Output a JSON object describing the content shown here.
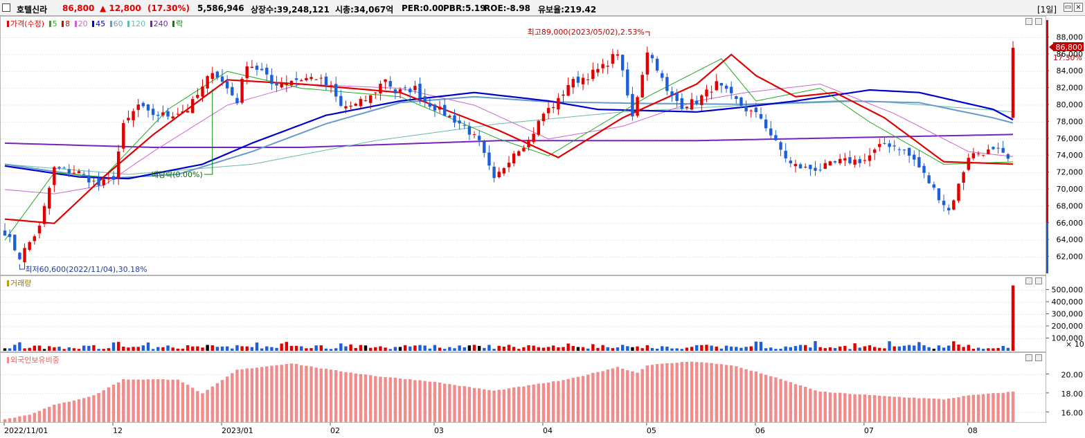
{
  "header": {
    "stock_name": "호텔신라",
    "price": "86,800",
    "change": "▲ 12,800",
    "change_pct": "(17.30%)",
    "volume": "5,586,946",
    "listed_shares": "상장수:39,248,121",
    "market_cap": "시총:34,067억",
    "per": "PER:0.00",
    "pbr": "PBR:5.19",
    "roe": "ROE:-8.98",
    "float_ratio": "유보율:219.42",
    "period": "[1일]"
  },
  "price_panel": {
    "legend": [
      {
        "label": "가격(수정)",
        "color": "#e00000"
      },
      {
        "label": "5",
        "color": "#22aa22"
      },
      {
        "label": "8",
        "color": "#e00000"
      },
      {
        "label": "20",
        "color": "#cc66cc"
      },
      {
        "label": "45",
        "color": "#0000cc"
      },
      {
        "label": "60",
        "color": "#6699cc"
      },
      {
        "label": "120",
        "color": "#66bbaa"
      },
      {
        "label": "240",
        "color": "#7722bb"
      },
      {
        "label": "락",
        "color": "#008800"
      }
    ],
    "annotations": {
      "high": "최고89,000(2023/05/02),2.53%",
      "low": "최저60,600(2022/11/04),30.18%",
      "dividend": "배당락(0.00%)"
    },
    "current_price_label": "86,800",
    "current_pct_label": "17.30%"
  },
  "volume_panel": {
    "title": "거래량",
    "unit_label": "× 10"
  },
  "foreign_panel": {
    "title": "외국인보유비중"
  },
  "colors": {
    "up": "#e00000",
    "down": "#1d5fd6",
    "ma5": "#22aa22",
    "ma8": "#e00000",
    "ma20": "#cc66cc",
    "ma45": "#0000cc",
    "ma60": "#6699cc",
    "ma120": "#66bbaa",
    "ma240": "#7722bb",
    "foreign_bar": "#f08c8c"
  },
  "chart_data": [
    {
      "type": "candlestick",
      "title": "호텔신라",
      "x_tick_labels": [
        "2022/11/01",
        "12",
        "2023/01",
        "02",
        "03",
        "04",
        "05",
        "06",
        "07",
        "08"
      ],
      "y_ticks": [
        62000,
        64000,
        66000,
        68000,
        70000,
        72000,
        74000,
        76000,
        78000,
        80000,
        82000,
        84000,
        86000,
        88000
      ],
      "ylim": [
        60000,
        90000
      ],
      "close_keypoints": [
        [
          "2022/11/01",
          65000
        ],
        [
          "2022/11/04",
          62000
        ],
        [
          "2022/11/10",
          65500
        ],
        [
          "2022/11/15",
          72500
        ],
        [
          "2022/11/22",
          72000
        ],
        [
          "2022/11/28",
          70500
        ],
        [
          "2022/12/01",
          71500
        ],
        [
          "2022/12/05",
          77500
        ],
        [
          "2022/12/08",
          80000
        ],
        [
          "2022/12/12",
          79000
        ],
        [
          "2022/12/16",
          78800
        ],
        [
          "2022/12/22",
          79500
        ],
        [
          "2022/12/27",
          82000
        ],
        [
          "2022/12/29",
          84200
        ],
        [
          "2023/01/05",
          80500
        ],
        [
          "2023/01/09",
          85000
        ],
        [
          "2023/01/12",
          84000
        ],
        [
          "2023/01/16",
          82500
        ],
        [
          "2023/01/20",
          83000
        ],
        [
          "2023/01/27",
          83300
        ],
        [
          "2023/02/01",
          82000
        ],
        [
          "2023/02/03",
          79800
        ],
        [
          "2023/02/08",
          80000
        ],
        [
          "2023/02/13",
          81000
        ],
        [
          "2023/02/16",
          83200
        ],
        [
          "2023/02/20",
          81500
        ],
        [
          "2023/02/24",
          82000
        ],
        [
          "2023/02/28",
          80500
        ],
        [
          "2023/03/06",
          79000
        ],
        [
          "2023/03/10",
          77500
        ],
        [
          "2023/03/15",
          75500
        ],
        [
          "2023/03/20",
          71000
        ],
        [
          "2023/03/24",
          74500
        ],
        [
          "2023/03/29",
          75800
        ],
        [
          "2023/04/03",
          79000
        ],
        [
          "2023/04/06",
          80500
        ],
        [
          "2023/04/10",
          82500
        ],
        [
          "2023/04/14",
          83500
        ],
        [
          "2023/04/19",
          84500
        ],
        [
          "2023/04/24",
          86300
        ],
        [
          "2023/04/27",
          78500
        ],
        [
          "2023/05/02",
          86500
        ],
        [
          "2023/05/04",
          84500
        ],
        [
          "2023/05/08",
          81500
        ],
        [
          "2023/05/11",
          80000
        ],
        [
          "2023/05/16",
          80500
        ],
        [
          "2023/05/22",
          82500
        ],
        [
          "2023/05/25",
          81000
        ],
        [
          "2023/05/30",
          79500
        ],
        [
          "2023/06/02",
          78500
        ],
        [
          "2023/06/07",
          75500
        ],
        [
          "2023/06/12",
          73000
        ],
        [
          "2023/06/15",
          72500
        ],
        [
          "2023/06/20",
          72500
        ],
        [
          "2023/06/26",
          73300
        ],
        [
          "2023/07/03",
          73500
        ],
        [
          "2023/07/07",
          75500
        ],
        [
          "2023/07/12",
          75000
        ],
        [
          "2023/07/17",
          73500
        ],
        [
          "2023/07/21",
          70000
        ],
        [
          "2023/07/26",
          67500
        ],
        [
          "2023/07/28",
          70500
        ],
        [
          "2023/08/01",
          74000
        ],
        [
          "2023/08/04",
          74500
        ],
        [
          "2023/08/09",
          74500
        ],
        [
          "2023/08/11",
          73500
        ],
        [
          "2023/08/14",
          86800
        ]
      ],
      "moving_averages": {
        "5": [
          [
            0,
            64000
          ],
          [
            10,
            72000
          ],
          [
            20,
            71500
          ],
          [
            33,
            79500
          ],
          [
            45,
            84000
          ],
          [
            60,
            82000
          ],
          [
            80,
            81000
          ],
          [
            100,
            76000
          ],
          [
            110,
            74000
          ],
          [
            130,
            81000
          ],
          [
            145,
            85500
          ],
          [
            152,
            80500
          ],
          [
            165,
            82000
          ],
          [
            175,
            78000
          ],
          [
            190,
            73000
          ],
          [
            205,
            73300
          ],
          [
            215,
            75000
          ],
          [
            225,
            70000
          ],
          [
            231,
            73000
          ],
          [
            240,
            75800
          ]
        ],
        "8": [
          [
            0,
            66500
          ],
          [
            10,
            66000
          ],
          [
            20,
            71500
          ],
          [
            30,
            76500
          ],
          [
            45,
            83000
          ],
          [
            60,
            82500
          ],
          [
            80,
            81500
          ],
          [
            100,
            77000
          ],
          [
            112,
            73800
          ],
          [
            125,
            78500
          ],
          [
            140,
            82500
          ],
          [
            147,
            86000
          ],
          [
            152,
            83500
          ],
          [
            160,
            81000
          ],
          [
            168,
            81500
          ],
          [
            178,
            78500
          ],
          [
            190,
            73300
          ],
          [
            205,
            73000
          ],
          [
            215,
            75000
          ],
          [
            222,
            72500
          ],
          [
            228,
            69800
          ],
          [
            235,
            72500
          ],
          [
            242,
            75800
          ]
        ],
        "20": [
          [
            0,
            70000
          ],
          [
            10,
            69500
          ],
          [
            20,
            70500
          ],
          [
            30,
            74500
          ],
          [
            45,
            80000
          ],
          [
            60,
            82500
          ],
          [
            80,
            82000
          ],
          [
            95,
            80000
          ],
          [
            110,
            76000
          ],
          [
            125,
            77500
          ],
          [
            140,
            80500
          ],
          [
            150,
            81500
          ],
          [
            165,
            82500
          ],
          [
            180,
            79000
          ],
          [
            195,
            74500
          ],
          [
            210,
            73500
          ],
          [
            222,
            74000
          ],
          [
            232,
            73000
          ],
          [
            242,
            73200
          ]
        ],
        "45": [
          [
            0,
            72800
          ],
          [
            15,
            71500
          ],
          [
            25,
            71300
          ],
          [
            40,
            73000
          ],
          [
            50,
            75500
          ],
          [
            65,
            78800
          ],
          [
            80,
            80500
          ],
          [
            95,
            81500
          ],
          [
            110,
            80500
          ],
          [
            120,
            79500
          ],
          [
            140,
            79200
          ],
          [
            150,
            79800
          ],
          [
            160,
            80500
          ],
          [
            175,
            81800
          ],
          [
            185,
            81500
          ],
          [
            200,
            79500
          ],
          [
            212,
            75800
          ],
          [
            225,
            74800
          ],
          [
            234,
            73800
          ],
          [
            242,
            73800
          ]
        ],
        "60": [
          [
            0,
            73000
          ],
          [
            20,
            71300
          ],
          [
            35,
            71800
          ],
          [
            50,
            74500
          ],
          [
            65,
            77800
          ],
          [
            80,
            80300
          ],
          [
            95,
            81000
          ],
          [
            110,
            80400
          ],
          [
            130,
            80200
          ],
          [
            150,
            80100
          ],
          [
            170,
            80500
          ],
          [
            185,
            80300
          ],
          [
            200,
            78500
          ],
          [
            215,
            76200
          ],
          [
            230,
            75200
          ],
          [
            242,
            75400
          ]
        ],
        "120": [
          [
            0,
            73000
          ],
          [
            25,
            71800
          ],
          [
            50,
            73000
          ],
          [
            75,
            75800
          ],
          [
            100,
            77800
          ],
          [
            125,
            79200
          ],
          [
            150,
            80000
          ],
          [
            175,
            80500
          ],
          [
            200,
            79400
          ],
          [
            225,
            78200
          ],
          [
            242,
            77600
          ]
        ],
        "240": [
          [
            0,
            75500
          ],
          [
            30,
            75000
          ],
          [
            60,
            75000
          ],
          [
            100,
            75800
          ],
          [
            140,
            75800
          ],
          [
            175,
            76200
          ],
          [
            210,
            76600
          ],
          [
            242,
            76800
          ]
        ]
      }
    },
    {
      "type": "bar",
      "title": "거래량",
      "y_ticks": [
        100000,
        200000,
        300000,
        400000,
        500000
      ],
      "ylim": [
        0,
        560000
      ],
      "unit": "× 10",
      "note": "typical daily volume ≈ 20,000–80,000; last day ≈ 540,000"
    },
    {
      "type": "bar",
      "title": "외국인보유비중",
      "y_ticks": [
        16.0,
        18.0,
        20.0
      ],
      "ylim": [
        15.0,
        22.0
      ],
      "keypoints": [
        [
          "2022/11/01",
          15.3
        ],
        [
          "2022/11/08",
          15.8
        ],
        [
          "2022/11/15",
          16.8
        ],
        [
          "2022/11/25",
          17.8
        ],
        [
          "2022/12/05",
          19.5
        ],
        [
          "2022/12/20",
          19.5
        ],
        [
          "2022/12/27",
          18.0
        ],
        [
          "2023/01/05",
          20.5
        ],
        [
          "2023/01/20",
          21.2
        ],
        [
          "2023/02/01",
          20.5
        ],
        [
          "2023/02/15",
          19.8
        ],
        [
          "2023/03/01",
          19.3
        ],
        [
          "2023/03/20",
          18.3
        ],
        [
          "2023/04/10",
          19.5
        ],
        [
          "2023/04/24",
          20.8
        ],
        [
          "2023/04/28",
          20.2
        ],
        [
          "2023/05/02",
          21.0
        ],
        [
          "2023/05/15",
          21.4
        ],
        [
          "2023/05/25",
          21.0
        ],
        [
          "2023/06/05",
          20.0
        ],
        [
          "2023/06/20",
          18.2
        ],
        [
          "2023/07/10",
          17.7
        ],
        [
          "2023/07/25",
          17.4
        ],
        [
          "2023/08/01",
          17.8
        ],
        [
          "2023/08/14",
          18.2
        ]
      ]
    }
  ]
}
